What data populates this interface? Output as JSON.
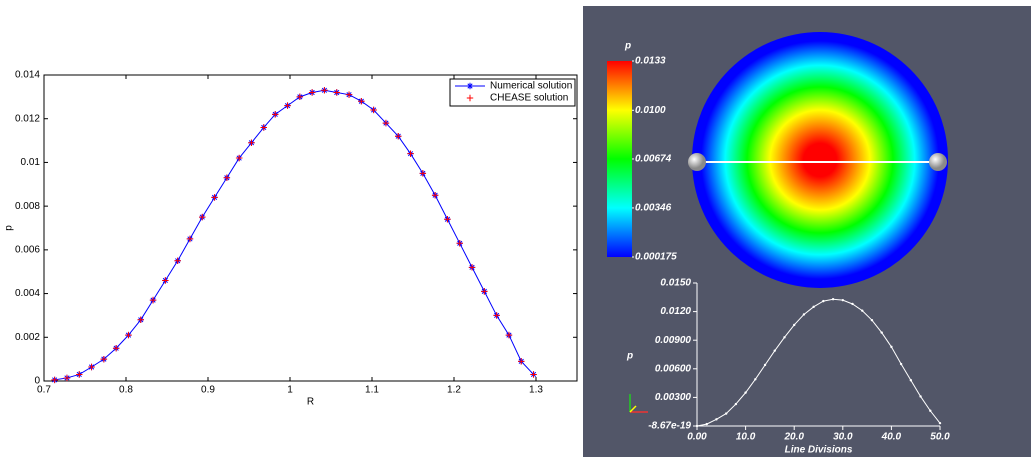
{
  "chart_data": [
    {
      "type": "line",
      "xlabel": "R",
      "ylabel": "p",
      "x": [
        0.713,
        0.728,
        0.743,
        0.758,
        0.773,
        0.788,
        0.803,
        0.818,
        0.833,
        0.848,
        0.863,
        0.878,
        0.893,
        0.908,
        0.923,
        0.938,
        0.953,
        0.968,
        0.982,
        0.997,
        1.012,
        1.027,
        1.042,
        1.057,
        1.072,
        1.087,
        1.102,
        1.117,
        1.132,
        1.147,
        1.162,
        1.177,
        1.192,
        1.207,
        1.222,
        1.237,
        1.252,
        1.267,
        1.282,
        1.297
      ],
      "series": [
        {
          "name": "Numerical solution",
          "color": "#0000ff",
          "linestyle": "-",
          "marker": "*",
          "values": [
            5e-05,
            0.00014,
            0.0003,
            0.00064,
            0.001,
            0.0015,
            0.0021,
            0.0028,
            0.0037,
            0.0046,
            0.0055,
            0.0065,
            0.0075,
            0.0084,
            0.0093,
            0.0102,
            0.0109,
            0.0116,
            0.0122,
            0.0126,
            0.013,
            0.0132,
            0.0133,
            0.0132,
            0.0131,
            0.0128,
            0.0124,
            0.0118,
            0.0112,
            0.0104,
            0.0095,
            0.0085,
            0.0074,
            0.0063,
            0.0052,
            0.0041,
            0.003,
            0.0021,
            0.0009,
            0.0003
          ]
        },
        {
          "name": "CHEASE solution",
          "color": "#ff0000",
          "linestyle": "none",
          "marker": "+",
          "values": [
            5e-05,
            0.00014,
            0.0003,
            0.00064,
            0.001,
            0.0015,
            0.0021,
            0.0028,
            0.0037,
            0.0046,
            0.0055,
            0.0065,
            0.0075,
            0.0084,
            0.0093,
            0.0102,
            0.0109,
            0.0116,
            0.0122,
            0.0126,
            0.013,
            0.0132,
            0.0133,
            0.0132,
            0.0131,
            0.0128,
            0.0124,
            0.0118,
            0.0112,
            0.0104,
            0.0095,
            0.0085,
            0.0074,
            0.0063,
            0.0052,
            0.0041,
            0.003,
            0.0021,
            0.0009,
            0.0003
          ]
        }
      ],
      "xlim": [
        0.7,
        1.35
      ],
      "xticks": [
        0.7,
        0.8,
        0.9,
        1,
        1.1,
        1.2,
        1.3
      ],
      "ylim": [
        0,
        0.014
      ],
      "yticks": [
        0,
        0.002,
        0.004,
        0.006,
        0.008,
        0.01,
        0.012,
        0.014
      ],
      "legend": "upper right"
    },
    {
      "type": "heatmap",
      "title": "p",
      "colormap": [
        "#0000ff",
        "#00ffff",
        "#00ff00",
        "#ffff00",
        "#ff0000"
      ],
      "clim": [
        0.000175,
        0.0133
      ],
      "cticks": [
        0.0133,
        {
          "value": 0.01,
          "label": "0.0100"
        },
        0.00674,
        0.00346,
        0.000175
      ]
    },
    {
      "type": "line",
      "xlabel": "Line Divisions",
      "ylabel": "p",
      "x": [
        0,
        2,
        4,
        6,
        8,
        10,
        12,
        14,
        16,
        18,
        20,
        22,
        24,
        26,
        28,
        30,
        32,
        34,
        36,
        38,
        40,
        42,
        44,
        46,
        48,
        50
      ],
      "series": [
        {
          "color": "#ffffff",
          "values": [
            0,
            0.0002,
            0.0007,
            0.0013,
            0.0023,
            0.0035,
            0.0049,
            0.0064,
            0.0079,
            0.0093,
            0.0106,
            0.0117,
            0.0125,
            0.0131,
            0.0133,
            0.0132,
            0.0128,
            0.0121,
            0.0111,
            0.0098,
            0.0083,
            0.0065,
            0.0048,
            0.0031,
            0.0016,
            0.0003
          ]
        }
      ],
      "xlim": [
        0,
        50
      ],
      "xticks": [
        {
          "value": 0,
          "label": "0.00"
        },
        {
          "value": 10,
          "label": "10.0"
        },
        {
          "value": 20,
          "label": "20.0"
        },
        {
          "value": 30,
          "label": "30.0"
        },
        {
          "value": 40,
          "label": "40.0"
        },
        {
          "value": 50,
          "label": "50.0"
        }
      ],
      "ylim": [
        -8.67e-19,
        0.015
      ],
      "yticks": [
        -8.67e-19,
        {
          "value": 0.003,
          "label": "0.00300"
        },
        {
          "value": 0.006,
          "label": "0.00600"
        },
        {
          "value": 0.009,
          "label": "0.00900"
        },
        {
          "value": 0.012,
          "label": "0.0120"
        },
        {
          "value": 0.015,
          "label": "0.0150"
        }
      ]
    }
  ]
}
